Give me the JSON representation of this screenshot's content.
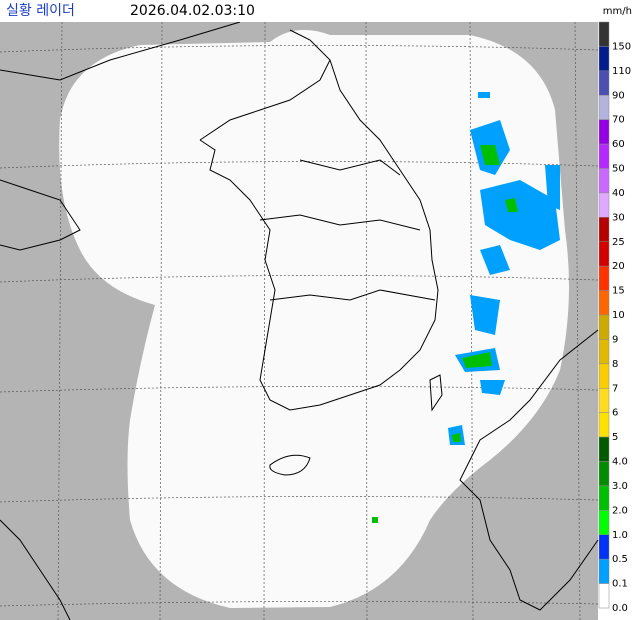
{
  "header": {
    "title": "실황 레이더",
    "time": "2026.04.02.03:10",
    "unit": "mm/h"
  },
  "legend": {
    "items": [
      {
        "label": "150",
        "color": "#333333"
      },
      {
        "label": "110",
        "color": "#021c8c"
      },
      {
        "label": "90",
        "color": "#4c4eb1"
      },
      {
        "label": "70",
        "color": "#b3b4de"
      },
      {
        "label": "60",
        "color": "#9300e4"
      },
      {
        "label": "50",
        "color": "#b329ff"
      },
      {
        "label": "40",
        "color": "#c969ff"
      },
      {
        "label": "30",
        "color": "#e0a9ff"
      },
      {
        "label": "25",
        "color": "#b40000"
      },
      {
        "label": "20",
        "color": "#d20000"
      },
      {
        "label": "15",
        "color": "#ff3200"
      },
      {
        "label": "10",
        "color": "#ff6600"
      },
      {
        "label": "9",
        "color": "#ccaa00"
      },
      {
        "label": "8",
        "color": "#e0b900"
      },
      {
        "label": "7",
        "color": "#f9cd00"
      },
      {
        "label": "6",
        "color": "#ffdc1f"
      },
      {
        "label": "5",
        "color": "#ffe100"
      },
      {
        "label": "4.0",
        "color": "#005a00"
      },
      {
        "label": "3.0",
        "color": "#008c00"
      },
      {
        "label": "2.0",
        "color": "#00be00"
      },
      {
        "label": "1.0",
        "color": "#00ff00"
      },
      {
        "label": "0.5",
        "color": "#0033f5"
      },
      {
        "label": "0.1",
        "color": "#00a0ff"
      },
      {
        "label": "0.0",
        "color": "#ffffff"
      }
    ]
  }
}
